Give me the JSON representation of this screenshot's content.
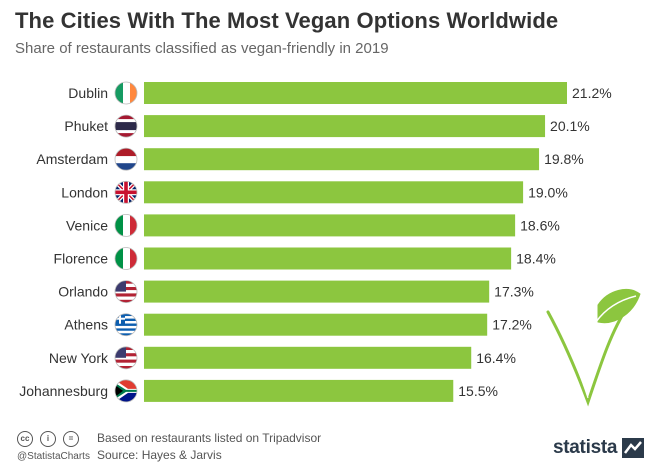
{
  "chart_data": {
    "type": "bar",
    "orientation": "horizontal",
    "title": "The Cities With The Most Vegan Options Worldwide",
    "subtitle": "Share of restaurants classified as vegan-friendly in 2019",
    "categories": [
      "Dublin",
      "Phuket",
      "Amsterdam",
      "London",
      "Venice",
      "Florence",
      "Orlando",
      "Athens",
      "New York",
      "Johannesburg"
    ],
    "values": [
      21.2,
      20.1,
      19.8,
      19.0,
      18.6,
      18.4,
      17.3,
      17.2,
      16.4,
      15.5
    ],
    "value_labels": [
      "21.2%",
      "20.1%",
      "19.8%",
      "19.0%",
      "18.6%",
      "18.4%",
      "17.3%",
      "17.2%",
      "16.4%",
      "15.5%"
    ],
    "flags": [
      "ireland-flag",
      "thailand-flag",
      "netherlands-flag",
      "uk-flag",
      "italy-flag",
      "italy-flag",
      "usa-flag",
      "greece-flag",
      "usa-flag",
      "south-africa-flag"
    ],
    "xlim": [
      0,
      21.2
    ],
    "grid": false,
    "bar_color": "#8cc63f"
  },
  "footer": {
    "handle": "@StatistaCharts",
    "note": "Based on restaurants listed on Tripadvisor",
    "source": "Source: Hayes & Jarvis",
    "brand": "statista"
  }
}
